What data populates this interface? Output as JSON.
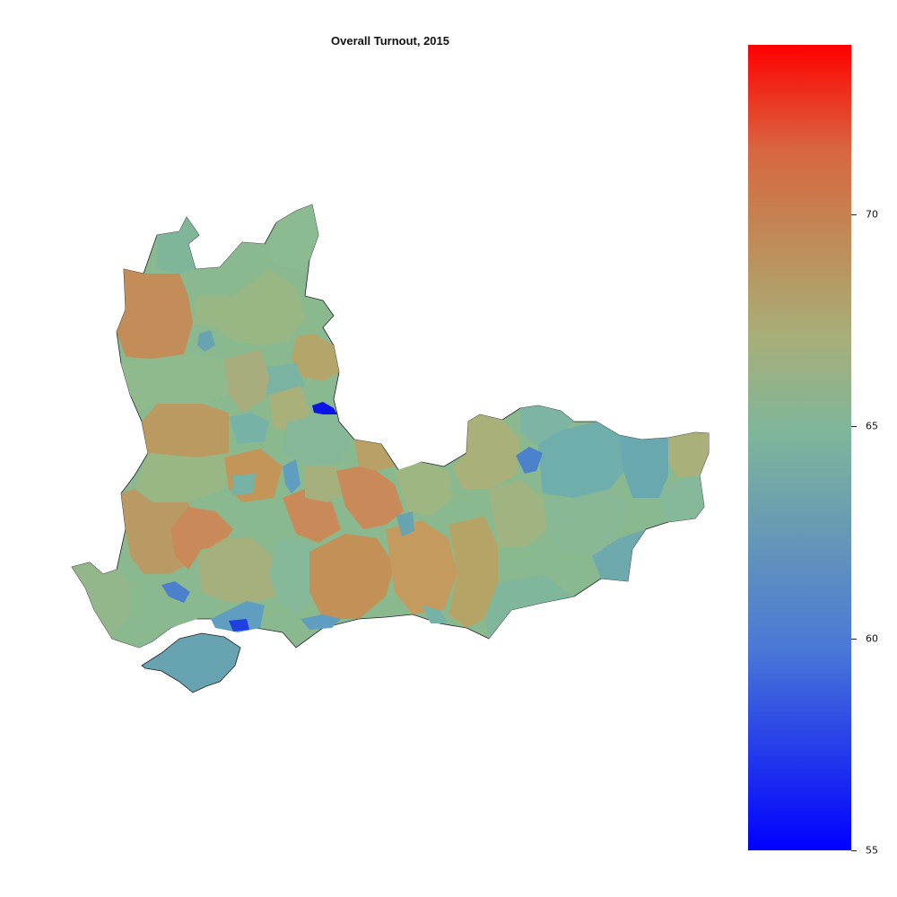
{
  "title": "Overall Turnout, 2015",
  "legend": {
    "type": "continuous-colorbar",
    "min": 55,
    "max": 74,
    "ticks": [
      "55",
      "60",
      "65",
      "70"
    ],
    "colors": {
      "low": "#0000ff",
      "mid": "#7fb69a",
      "mid_high": "#c08a56",
      "high": "#ff0000"
    }
  },
  "map": {
    "region": "South East England constituencies",
    "colors": {
      "teal": "#76b2a6",
      "green": "#8bb98f",
      "olive": "#a9b07a",
      "tan": "#bf9a60",
      "orange": "#c98958",
      "blue_mid": "#5f9ec0",
      "blue_strong": "#4c82cc",
      "blue_deep": "#0a14e6",
      "steel": "#67a3b0"
    }
  }
}
